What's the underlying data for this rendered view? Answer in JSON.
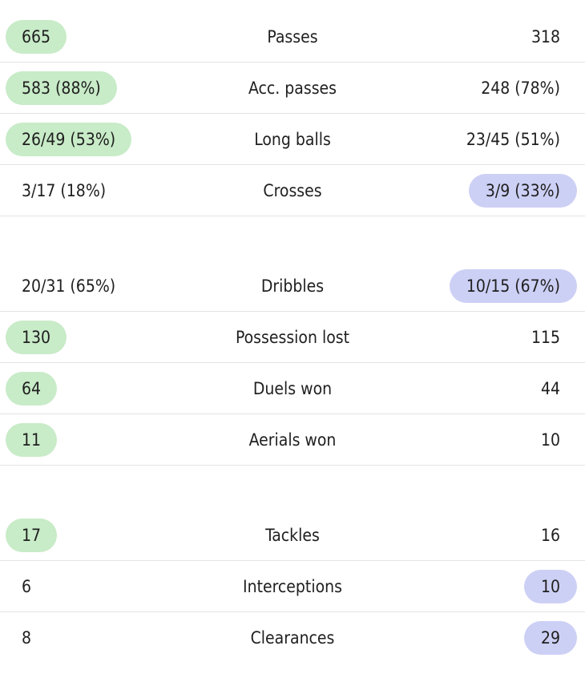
{
  "groups": [
    {
      "rows": [
        {
          "home": "665",
          "label": "Passes",
          "away": "318",
          "leader": "home"
        },
        {
          "home": "583 (88%)",
          "label": "Acc. passes",
          "away": "248 (78%)",
          "leader": "home"
        },
        {
          "home": "26/49 (53%)",
          "label": "Long balls",
          "away": "23/45 (51%)",
          "leader": "home"
        },
        {
          "home": "3/17 (18%)",
          "label": "Crosses",
          "away": "3/9 (33%)",
          "leader": "away"
        }
      ]
    },
    {
      "rows": [
        {
          "home": "20/31 (65%)",
          "label": "Dribbles",
          "away": "10/15 (67%)",
          "leader": "away"
        },
        {
          "home": "130",
          "label": "Possession lost",
          "away": "115",
          "leader": "home"
        },
        {
          "home": "64",
          "label": "Duels won",
          "away": "44",
          "leader": "home"
        },
        {
          "home": "11",
          "label": "Aerials won",
          "away": "10",
          "leader": "home"
        }
      ]
    },
    {
      "rows": [
        {
          "home": "17",
          "label": "Tackles",
          "away": "16",
          "leader": "home"
        },
        {
          "home": "6",
          "label": "Interceptions",
          "away": "10",
          "leader": "away"
        },
        {
          "home": "8",
          "label": "Clearances",
          "away": "29",
          "leader": "away"
        }
      ]
    }
  ],
  "colors": {
    "home_highlight": "#c8ebc8",
    "away_highlight": "#cdd0f5",
    "divider": "#e3e3e3",
    "text": "#1f1f1f"
  }
}
